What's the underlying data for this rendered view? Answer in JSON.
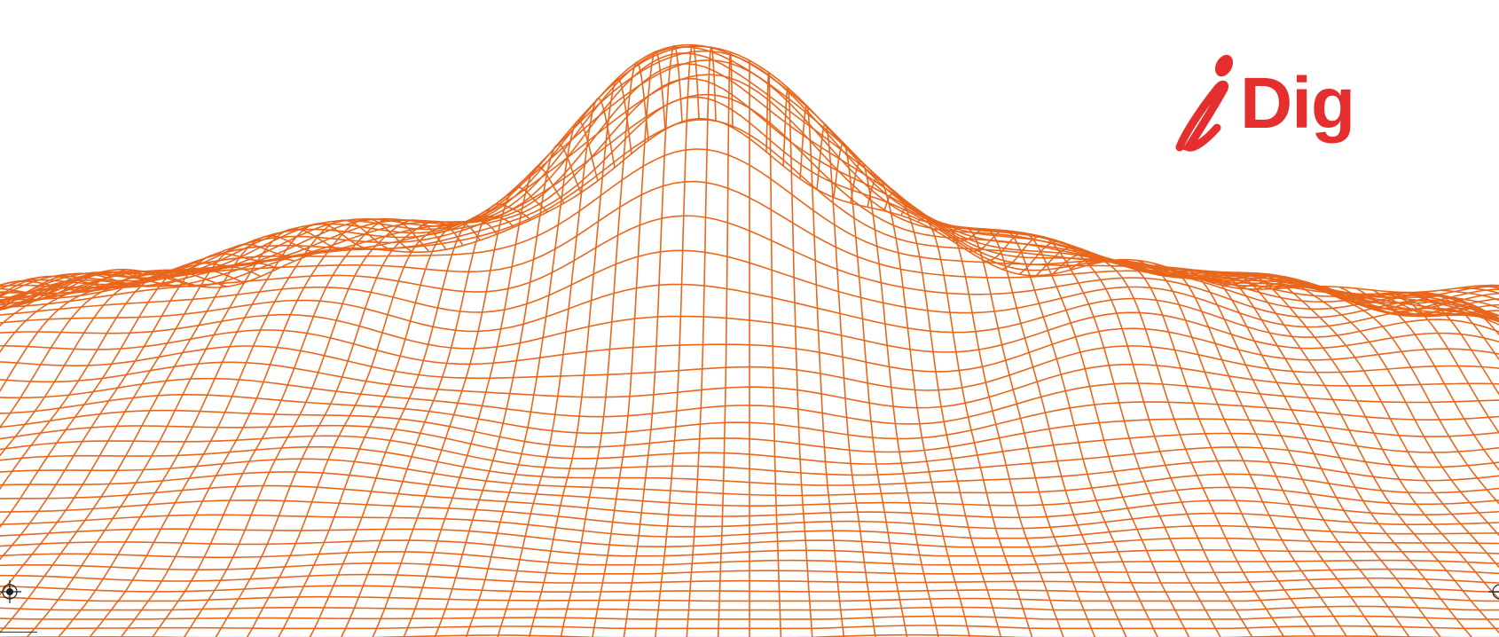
{
  "brand": {
    "logo_text": "Dig",
    "logo_color": "#e52e2e"
  },
  "artwork": {
    "subject": "wireframe-mountain-icon",
    "line_color": "#e8671c",
    "background_color": "#ffffff"
  },
  "print_marks": {
    "registration_mark": "registration-crosshair-icon"
  }
}
